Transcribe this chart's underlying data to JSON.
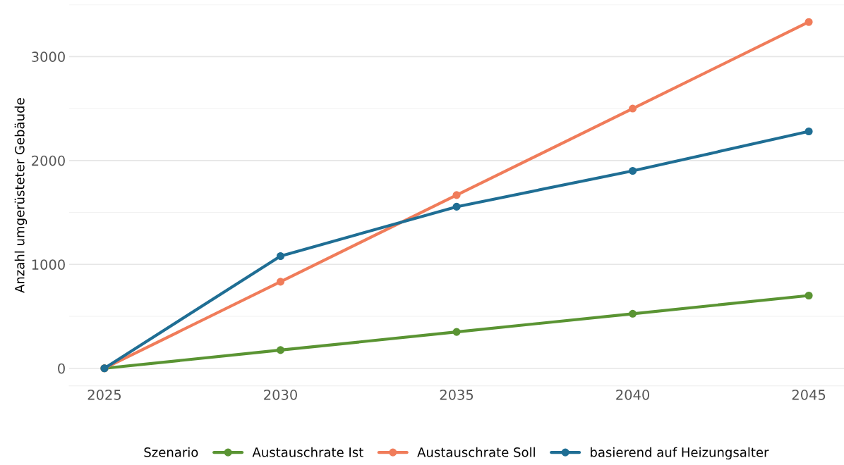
{
  "chart_data": {
    "type": "line",
    "ylabel": "Anzahl umgerüsteter Gebäude",
    "legend_title": "Szenario",
    "x": [
      2025,
      2030,
      2035,
      2040,
      2045
    ],
    "series": [
      {
        "name": "Austauschrate Ist",
        "color": "#5a9433",
        "values": [
          0,
          175,
          350,
          525,
          700
        ]
      },
      {
        "name": "Austauschrate Soll",
        "color": "#f07c5a",
        "values": [
          0,
          833,
          1667,
          2500,
          3333
        ]
      },
      {
        "name": "basierend auf Heizungsalter",
        "color": "#1f6e94",
        "values": [
          0,
          1080,
          1555,
          1900,
          2280
        ]
      }
    ],
    "xlim": [
      2024,
      2046
    ],
    "xticks": [
      2025,
      2030,
      2035,
      2040,
      2045
    ],
    "ylim": [
      -170,
      3500
    ],
    "yticks": [
      0,
      {
        "value": 500,
        "label": null
      },
      1000,
      {
        "value": 1500,
        "label": null
      },
      2000,
      {
        "value": 2500,
        "label": null
      },
      3000,
      {
        "value": 3500,
        "label": null
      }
    ],
    "grid": "y",
    "legend": "bottom",
    "marker": "circle",
    "line_style": "solid"
  }
}
